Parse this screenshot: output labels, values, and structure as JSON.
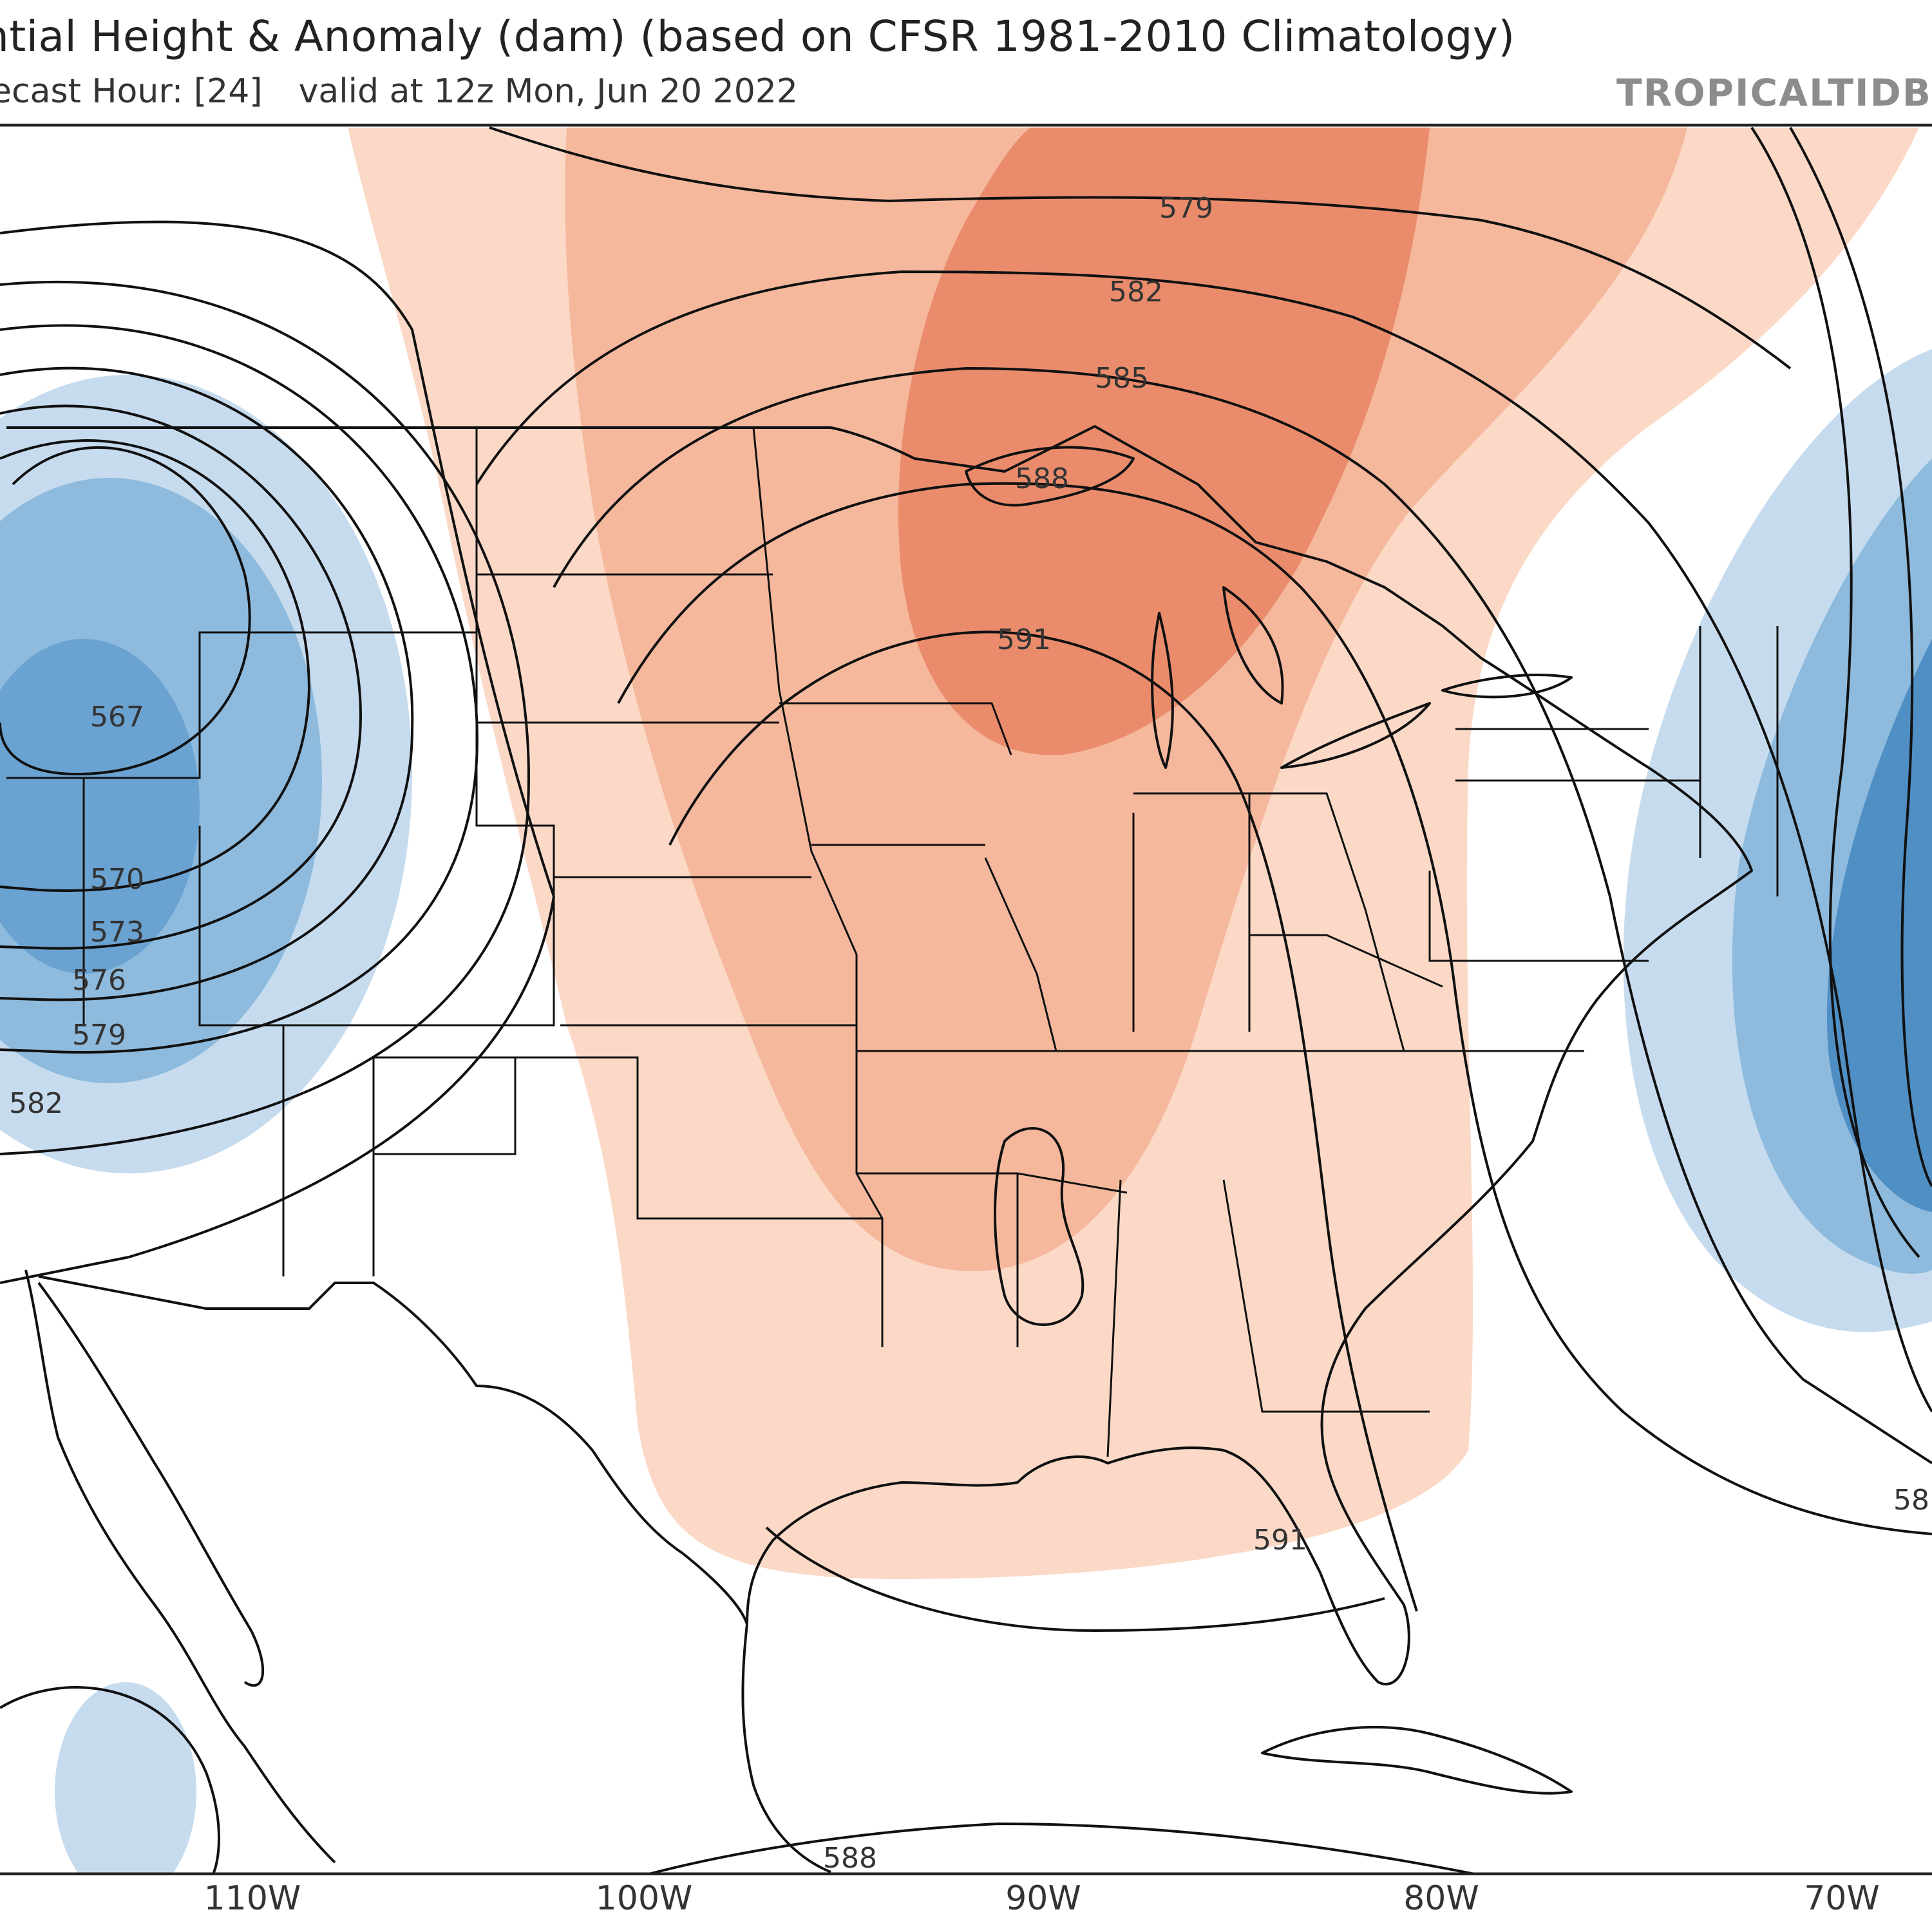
{
  "header": {
    "title": "ntial Height & Anomaly (dam) (based on CFSR 1981-2010 Climatology)",
    "forecast_label": "ecast Hour: [24]",
    "valid_label": "valid at 12z Mon, Jun 20 2022",
    "brand": "TROPICALTIDB"
  },
  "map": {
    "longitude_labels": [
      "110W",
      "100W",
      "90W",
      "80W",
      "70W"
    ],
    "contour_labels": {
      "c567": "567",
      "c570": "570",
      "c573": "573",
      "c576": "576",
      "c579_west": "579",
      "c582_west": "582",
      "c579_north": "579",
      "c582_north": "582",
      "c585": "585",
      "c588_north": "588",
      "c591_north": "591",
      "c591_south": "591",
      "c588_south": "588",
      "c58_east": "58"
    },
    "colors": {
      "positive_anomaly_light": "#fbd9c6",
      "positive_anomaly_mid": "#f5b89d",
      "positive_anomaly_strong": "#ea8c6c",
      "negative_anomaly_light": "#c6dcee",
      "negative_anomaly_mid": "#8ebbdd",
      "negative_anomaly_strong": "#4f8fc4"
    }
  }
}
